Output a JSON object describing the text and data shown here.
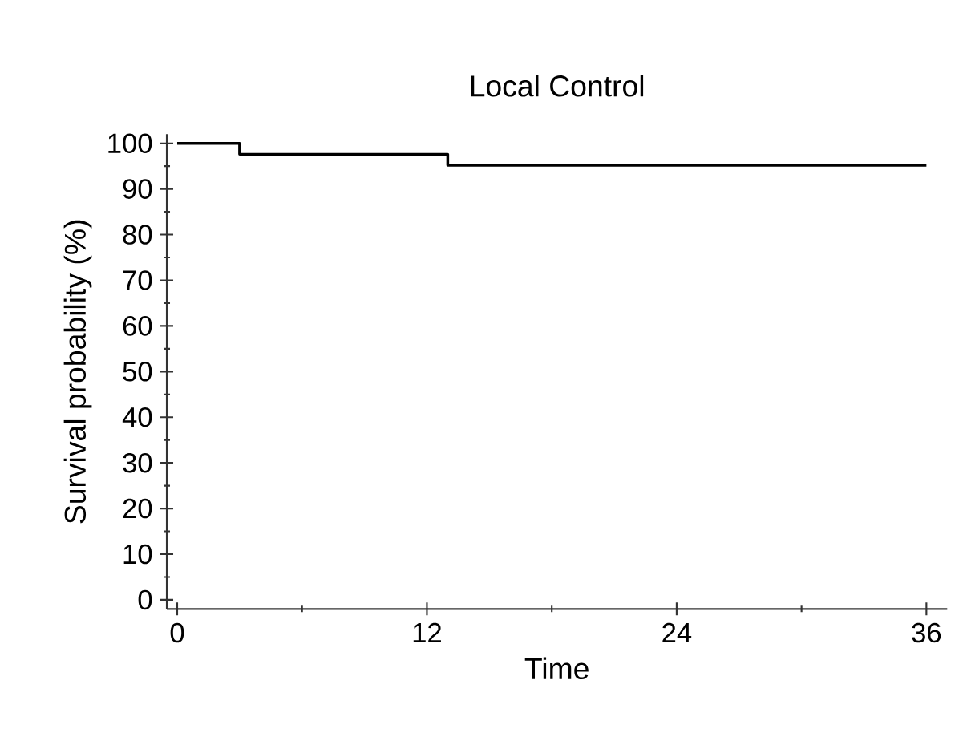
{
  "chart_data": {
    "type": "step",
    "title": "Local Control",
    "xlabel": "Time",
    "ylabel": "Survival probability (%)",
    "x": [
      0,
      3,
      13,
      36
    ],
    "series": [
      {
        "color": "#000000",
        "values": [
          100,
          97.6,
          95.2,
          95.2
        ]
      }
    ],
    "xlim": [
      -0.5,
      37
    ],
    "ylim": [
      -2,
      102
    ],
    "xticks": [
      0,
      12,
      24,
      36
    ],
    "yticks": [
      0,
      10,
      20,
      30,
      40,
      50,
      60,
      70,
      80,
      90,
      100
    ],
    "grid": false,
    "marker": "none",
    "line_style": "solid"
  }
}
